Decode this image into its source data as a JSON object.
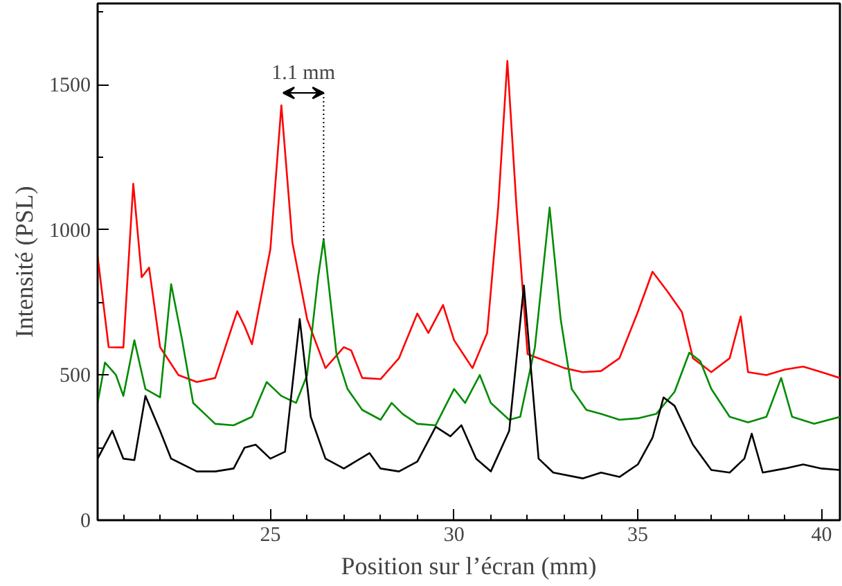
{
  "chart_data": {
    "type": "line",
    "xlabel": "Position sur l’écran (mm)",
    "ylabel": "Intensité (PSL)",
    "xlim": [
      20.3,
      40.5
    ],
    "xticks": [
      25,
      30,
      35,
      40
    ],
    "ylim": [
      0,
      1780
    ],
    "yticks": [
      0,
      500,
      1000,
      1500
    ],
    "grid": false,
    "annotations": [
      {
        "text": "1.1 mm",
        "x": 26.45,
        "y": 967
      }
    ],
    "series": [
      {
        "color": "#ff0000",
        "x": [
          20.3,
          20.6,
          21.0,
          21.27,
          21.5,
          21.7,
          22.0,
          22.5,
          23.0,
          23.5,
          24.0,
          24.1,
          24.3,
          24.5,
          25.0,
          25.3,
          25.6,
          26.0,
          26.5,
          27.0,
          27.2,
          27.5,
          28.0,
          28.5,
          29.0,
          29.3,
          29.7,
          30.0,
          30.5,
          30.9,
          31.2,
          31.45,
          31.7,
          32.0,
          32.5,
          33.0,
          33.5,
          34.0,
          34.5,
          35.0,
          35.4,
          35.8,
          36.2,
          36.5,
          37.0,
          37.5,
          37.8,
          38.0,
          38.5,
          39.0,
          39.5,
          40.0,
          40.5
        ],
        "values": [
          909,
          596,
          595,
          1159,
          837,
          870,
          596,
          500,
          476,
          490,
          683,
          720,
          668,
          606,
          933,
          1429,
          957,
          693,
          524,
          596,
          585,
          490,
          486,
          558,
          712,
          645,
          741,
          620,
          524,
          645,
          1077,
          1582,
          1077,
          572,
          548,
          524,
          510,
          514,
          558,
          717,
          856,
          789,
          717,
          558,
          510,
          558,
          702,
          510,
          500,
          519,
          529,
          510,
          490
        ]
      },
      {
        "color": "#008c00",
        "x": [
          20.3,
          20.5,
          20.8,
          21.0,
          21.3,
          21.6,
          22.0,
          22.3,
          22.6,
          22.9,
          23.5,
          24.0,
          24.5,
          24.9,
          25.3,
          25.7,
          26.0,
          26.3,
          26.45,
          26.8,
          27.1,
          27.5,
          28.0,
          28.3,
          28.6,
          29.0,
          29.5,
          30.0,
          30.3,
          30.7,
          31.0,
          31.5,
          31.8,
          32.2,
          32.6,
          32.9,
          33.2,
          33.6,
          34.0,
          34.5,
          35.0,
          35.5,
          36.0,
          36.4,
          36.7,
          37.0,
          37.5,
          38.0,
          38.5,
          38.9,
          39.2,
          39.8,
          40.5
        ],
        "values": [
          404,
          543,
          500,
          428,
          620,
          452,
          423,
          813,
          620,
          404,
          332,
          327,
          356,
          476,
          428,
          404,
          500,
          837,
          967,
          572,
          452,
          380,
          346,
          404,
          366,
          332,
          327,
          452,
          404,
          500,
          404,
          346,
          356,
          596,
          1077,
          693,
          452,
          380,
          366,
          346,
          351,
          366,
          442,
          577,
          548,
          452,
          356,
          337,
          356,
          490,
          356,
          332,
          356
        ]
      },
      {
        "color": "#000000",
        "x": [
          20.3,
          20.7,
          21.0,
          21.3,
          21.6,
          22.0,
          22.3,
          23.0,
          23.5,
          24.0,
          24.3,
          24.6,
          25.0,
          25.4,
          25.8,
          26.1,
          26.5,
          27.0,
          27.7,
          28.0,
          28.5,
          29.0,
          29.5,
          29.9,
          30.2,
          30.6,
          31.0,
          31.5,
          31.9,
          32.3,
          32.7,
          33.5,
          34.0,
          34.5,
          35.0,
          35.4,
          35.7,
          36.0,
          36.5,
          37.0,
          37.5,
          37.9,
          38.1,
          38.4,
          39.0,
          39.5,
          40.0,
          40.5
        ],
        "values": [
          212,
          308,
          212,
          207,
          428,
          308,
          212,
          168,
          168,
          178,
          250,
          260,
          212,
          236,
          693,
          356,
          212,
          178,
          231,
          178,
          168,
          202,
          322,
          289,
          327,
          212,
          168,
          308,
          808,
          212,
          164,
          144,
          164,
          149,
          192,
          284,
          423,
          394,
          260,
          173,
          164,
          212,
          298,
          164,
          178,
          192,
          178,
          173
        ]
      }
    ]
  }
}
